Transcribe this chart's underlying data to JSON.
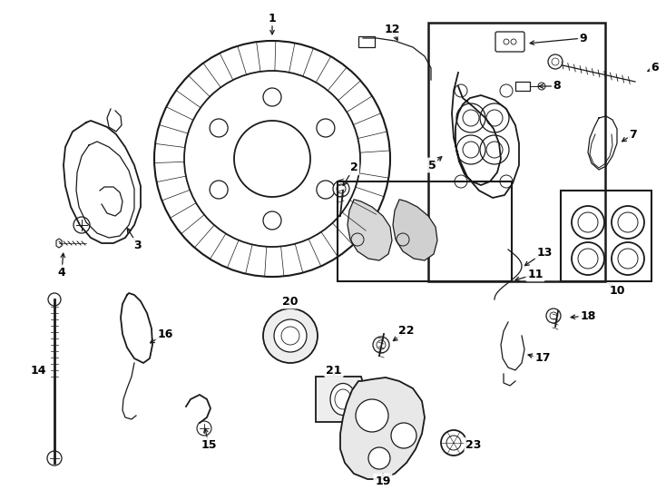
{
  "background_color": "#ffffff",
  "line_color": "#1a1a1a",
  "fig_width": 7.34,
  "fig_height": 5.4,
  "dpi": 100
}
